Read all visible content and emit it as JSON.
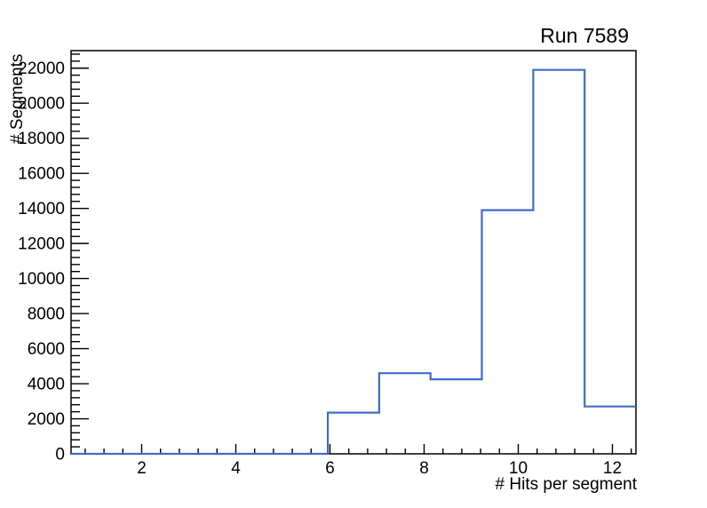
{
  "page": {
    "background": "#ffffff"
  },
  "chart_data": {
    "type": "bar",
    "subtype": "step-outline-histogram",
    "title": "Run 7589",
    "xlabel": "# Hits per segment",
    "ylabel": "# Segments",
    "xlim": [
      0.5,
      12.5
    ],
    "ylim": [
      0,
      23000
    ],
    "grid": false,
    "legend": "none",
    "line_color": "#3f6bc9",
    "axis_color": "#000000",
    "bin_edges": [
      0.5,
      1.591,
      2.682,
      3.773,
      4.864,
      5.955,
      7.045,
      8.136,
      9.227,
      10.318,
      11.409,
      12.5
    ],
    "values": [
      0,
      0,
      0,
      0,
      0,
      2350,
      4600,
      4250,
      13900,
      21900,
      2700
    ],
    "x_major_ticks": [
      2,
      4,
      6,
      8,
      10,
      12
    ],
    "x_tick_labels": [
      "2",
      "4",
      "6",
      "8",
      "10",
      "12"
    ],
    "x_minor_step": 0.4,
    "y_major_ticks": [
      0,
      2000,
      4000,
      6000,
      8000,
      10000,
      12000,
      14000,
      16000,
      18000,
      20000,
      22000
    ],
    "y_tick_labels": [
      "0",
      "2000",
      "4000",
      "6000",
      "8000",
      "10000",
      "12000",
      "14000",
      "16000",
      "18000",
      "20000",
      "22000"
    ],
    "y_minor_step": 400
  }
}
